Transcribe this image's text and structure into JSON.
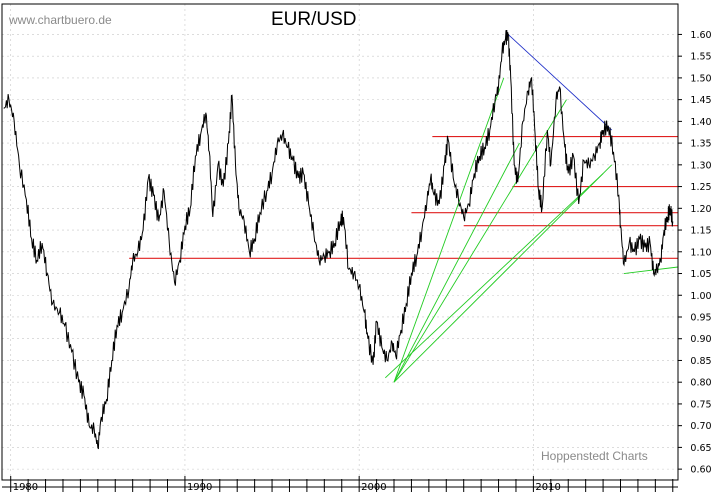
{
  "watermark": "www.chartbuero.de",
  "credit": "Hoppenstedt Charts",
  "chart_data": {
    "type": "line",
    "title": "EUR/USD",
    "xlabel": "",
    "ylabel": "",
    "x_range": [
      1979.5,
      2018.3
    ],
    "ylim": [
      0.575,
      1.67
    ],
    "y_ticks": [
      0.6,
      0.65,
      0.7,
      0.75,
      0.8,
      0.85,
      0.9,
      0.95,
      1.0,
      1.05,
      1.1,
      1.15,
      1.2,
      1.25,
      1.3,
      1.35,
      1.4,
      1.45,
      1.5,
      1.55,
      1.6
    ],
    "y_tick_labels": [
      "0.60",
      "0.65",
      "0.70",
      "0.75",
      "0.80",
      "0.85",
      "0.90",
      "0.95",
      "1.00",
      "1.05",
      "1.10",
      "1.15",
      "1.20",
      "1.25",
      "1.30",
      "1.35",
      "1.40",
      "1.45",
      "1.50",
      "1.55",
      "1.60"
    ],
    "x_ticks": [
      1980,
      1990,
      2000,
      2010
    ],
    "x_tick_labels": [
      "1980",
      "1990",
      "2000",
      "2010"
    ],
    "grid": true,
    "axis_side": "right",
    "series": [
      {
        "color": "#000000",
        "points": [
          [
            1979.6,
            1.43
          ],
          [
            1979.9,
            1.45
          ],
          [
            1980.2,
            1.4
          ],
          [
            1980.5,
            1.3
          ],
          [
            1980.9,
            1.22
          ],
          [
            1981.2,
            1.13
          ],
          [
            1981.5,
            1.08
          ],
          [
            1981.8,
            1.12
          ],
          [
            1982.1,
            1.05
          ],
          [
            1982.4,
            0.98
          ],
          [
            1982.8,
            0.96
          ],
          [
            1983.1,
            0.93
          ],
          [
            1983.5,
            0.87
          ],
          [
            1983.9,
            0.8
          ],
          [
            1984.2,
            0.77
          ],
          [
            1984.5,
            0.7
          ],
          [
            1984.8,
            0.69
          ],
          [
            1985.0,
            0.65
          ],
          [
            1985.2,
            0.72
          ],
          [
            1985.5,
            0.76
          ],
          [
            1985.8,
            0.85
          ],
          [
            1986.1,
            0.93
          ],
          [
            1986.4,
            0.96
          ],
          [
            1986.8,
            1.02
          ],
          [
            1987.0,
            1.08
          ],
          [
            1987.3,
            1.1
          ],
          [
            1987.6,
            1.15
          ],
          [
            1987.9,
            1.27
          ],
          [
            1988.2,
            1.23
          ],
          [
            1988.5,
            1.17
          ],
          [
            1988.8,
            1.24
          ],
          [
            1989.1,
            1.12
          ],
          [
            1989.4,
            1.03
          ],
          [
            1989.7,
            1.08
          ],
          [
            1990.0,
            1.16
          ],
          [
            1990.3,
            1.2
          ],
          [
            1990.6,
            1.32
          ],
          [
            1990.9,
            1.37
          ],
          [
            1991.2,
            1.42
          ],
          [
            1991.4,
            1.33
          ],
          [
            1991.6,
            1.18
          ],
          [
            1991.9,
            1.3
          ],
          [
            1992.2,
            1.25
          ],
          [
            1992.5,
            1.35
          ],
          [
            1992.7,
            1.46
          ],
          [
            1992.9,
            1.3
          ],
          [
            1993.1,
            1.2
          ],
          [
            1993.4,
            1.17
          ],
          [
            1993.7,
            1.1
          ],
          [
            1994.0,
            1.13
          ],
          [
            1994.3,
            1.19
          ],
          [
            1994.7,
            1.24
          ],
          [
            1995.0,
            1.28
          ],
          [
            1995.3,
            1.35
          ],
          [
            1995.6,
            1.37
          ],
          [
            1995.9,
            1.34
          ],
          [
            1996.2,
            1.31
          ],
          [
            1996.5,
            1.27
          ],
          [
            1996.8,
            1.28
          ],
          [
            1997.1,
            1.21
          ],
          [
            1997.4,
            1.14
          ],
          [
            1997.7,
            1.08
          ],
          [
            1998.0,
            1.09
          ],
          [
            1998.3,
            1.1
          ],
          [
            1998.6,
            1.12
          ],
          [
            1998.9,
            1.17
          ],
          [
            1999.1,
            1.18
          ],
          [
            1999.4,
            1.06
          ],
          [
            1999.7,
            1.05
          ],
          [
            2000.0,
            1.02
          ],
          [
            2000.3,
            0.96
          ],
          [
            2000.5,
            0.9
          ],
          [
            2000.8,
            0.84
          ],
          [
            2001.0,
            0.94
          ],
          [
            2001.3,
            0.88
          ],
          [
            2001.6,
            0.85
          ],
          [
            2001.9,
            0.89
          ],
          [
            2002.1,
            0.86
          ],
          [
            2002.4,
            0.92
          ],
          [
            2002.7,
            0.98
          ],
          [
            2003.0,
            1.05
          ],
          [
            2003.3,
            1.09
          ],
          [
            2003.6,
            1.15
          ],
          [
            2003.9,
            1.22
          ],
          [
            2004.1,
            1.27
          ],
          [
            2004.3,
            1.23
          ],
          [
            2004.6,
            1.21
          ],
          [
            2004.9,
            1.3
          ],
          [
            2005.1,
            1.36
          ],
          [
            2005.4,
            1.27
          ],
          [
            2005.7,
            1.22
          ],
          [
            2006.0,
            1.18
          ],
          [
            2006.3,
            1.21
          ],
          [
            2006.6,
            1.28
          ],
          [
            2006.9,
            1.32
          ],
          [
            2007.2,
            1.34
          ],
          [
            2007.5,
            1.38
          ],
          [
            2007.8,
            1.45
          ],
          [
            2008.0,
            1.48
          ],
          [
            2008.2,
            1.56
          ],
          [
            2008.4,
            1.59
          ],
          [
            2008.55,
            1.6
          ],
          [
            2008.7,
            1.5
          ],
          [
            2008.9,
            1.3
          ],
          [
            2009.1,
            1.26
          ],
          [
            2009.4,
            1.4
          ],
          [
            2009.7,
            1.47
          ],
          [
            2009.9,
            1.5
          ],
          [
            2010.1,
            1.37
          ],
          [
            2010.3,
            1.24
          ],
          [
            2010.5,
            1.2
          ],
          [
            2010.8,
            1.38
          ],
          [
            2011.0,
            1.3
          ],
          [
            2011.3,
            1.45
          ],
          [
            2011.5,
            1.48
          ],
          [
            2011.8,
            1.34
          ],
          [
            2012.0,
            1.28
          ],
          [
            2012.3,
            1.32
          ],
          [
            2012.6,
            1.21
          ],
          [
            2012.9,
            1.31
          ],
          [
            2013.2,
            1.3
          ],
          [
            2013.5,
            1.32
          ],
          [
            2013.8,
            1.35
          ],
          [
            2014.0,
            1.38
          ],
          [
            2014.3,
            1.39
          ],
          [
            2014.6,
            1.33
          ],
          [
            2014.9,
            1.23
          ],
          [
            2015.0,
            1.16
          ],
          [
            2015.2,
            1.07
          ],
          [
            2015.5,
            1.12
          ],
          [
            2015.8,
            1.1
          ],
          [
            2016.1,
            1.13
          ],
          [
            2016.4,
            1.11
          ],
          [
            2016.7,
            1.12
          ],
          [
            2016.9,
            1.05
          ],
          [
            2017.1,
            1.06
          ],
          [
            2017.3,
            1.08
          ],
          [
            2017.5,
            1.15
          ],
          [
            2017.7,
            1.18
          ],
          [
            2017.85,
            1.2
          ],
          [
            2018.0,
            1.17
          ]
        ]
      }
    ],
    "trendlines": [
      {
        "color": "#2030c8",
        "from": [
          2008.55,
          1.6
        ],
        "to": [
          2014.5,
          1.38
        ]
      },
      {
        "color": "#22cc22",
        "from": [
          2002.0,
          0.8
        ],
        "to": [
          2008.3,
          1.5
        ]
      },
      {
        "color": "#22cc22",
        "from": [
          2002.0,
          0.8
        ],
        "to": [
          2009.2,
          1.35
        ]
      },
      {
        "color": "#22cc22",
        "from": [
          2002.0,
          0.8
        ],
        "to": [
          2011.9,
          1.45
        ]
      },
      {
        "color": "#22cc22",
        "from": [
          2002.0,
          0.8
        ],
        "to": [
          2014.5,
          1.3
        ]
      },
      {
        "color": "#22cc22",
        "from": [
          2001.5,
          0.81
        ],
        "to": [
          2014.0,
          1.28
        ]
      },
      {
        "color": "#22cc22",
        "from": [
          2015.2,
          1.05
        ],
        "to": [
          2018.3,
          1.065
        ]
      }
    ],
    "horizontal_lines": [
      {
        "color": "#e02020",
        "y": 1.365,
        "from": 2004.2,
        "to": 2018.3
      },
      {
        "color": "#e02020",
        "y": 1.25,
        "from": 2008.8,
        "to": 2018.3
      },
      {
        "color": "#e02020",
        "y": 1.19,
        "from": 2003.0,
        "to": 2018.3
      },
      {
        "color": "#e02020",
        "y": 1.16,
        "from": 2006.0,
        "to": 2018.3
      },
      {
        "color": "#e02020",
        "y": 1.085,
        "from": 1986.8,
        "to": 2018.3
      }
    ]
  }
}
